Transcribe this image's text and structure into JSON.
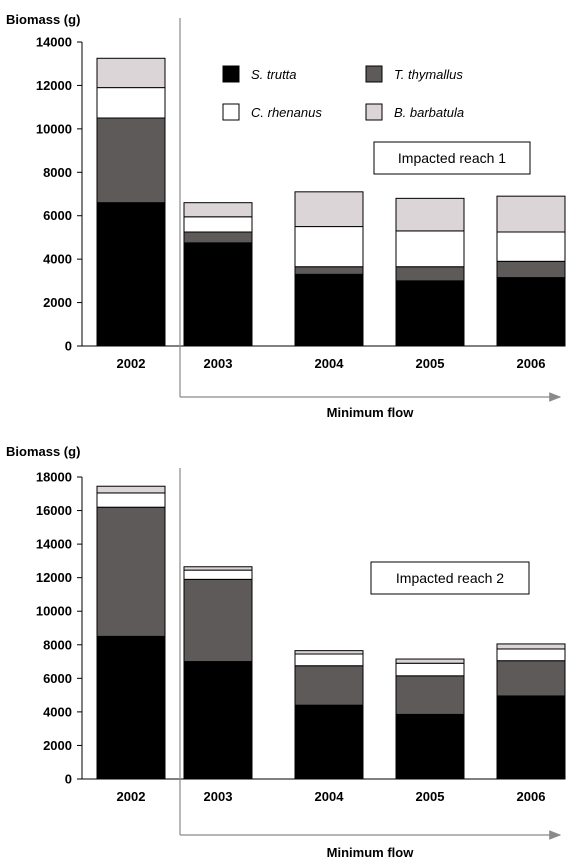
{
  "colors": {
    "S. trutta": "#000000",
    "T. thymallus": "#5f5a5a",
    "C. rhenanus": "#ffffff",
    "B. barbatula": "#dcd5d7"
  },
  "chart_data": [
    {
      "type": "bar",
      "stacked": true,
      "ylabel": "Biomass (g)",
      "annotation": "Impacted reach 1",
      "arrow_label": "Minimum flow",
      "categories": [
        "2002",
        "2003",
        "2004",
        "2005",
        "2006"
      ],
      "ylim": [
        0,
        14000
      ],
      "yticks": [
        0,
        2000,
        4000,
        6000,
        8000,
        10000,
        12000,
        14000
      ],
      "legend": [
        "S. trutta",
        "T. thymallus",
        "C. rhenanus",
        "B. barbatula"
      ],
      "series": [
        {
          "name": "S. trutta",
          "values": [
            6600,
            4750,
            3300,
            3000,
            3150
          ]
        },
        {
          "name": "T. thymallus",
          "values": [
            3900,
            500,
            350,
            650,
            750
          ]
        },
        {
          "name": "C. rhenanus",
          "values": [
            1400,
            700,
            1850,
            1650,
            1350
          ]
        },
        {
          "name": "B. barbatula",
          "values": [
            1350,
            650,
            1600,
            1500,
            1650
          ]
        }
      ]
    },
    {
      "type": "bar",
      "stacked": true,
      "ylabel": "Biomass (g)",
      "annotation": "Impacted reach 2",
      "arrow_label": "Minimum flow",
      "categories": [
        "2002",
        "2003",
        "2004",
        "2005",
        "2006"
      ],
      "ylim": [
        0,
        18000
      ],
      "yticks": [
        0,
        2000,
        4000,
        6000,
        8000,
        10000,
        12000,
        14000,
        16000,
        18000
      ],
      "series": [
        {
          "name": "S. trutta",
          "values": [
            8500,
            7000,
            4400,
            3850,
            4950
          ]
        },
        {
          "name": "T. thymallus",
          "values": [
            7700,
            4900,
            2350,
            2300,
            2100
          ]
        },
        {
          "name": "C. rhenanus",
          "values": [
            850,
            550,
            700,
            750,
            700
          ]
        },
        {
          "name": "B. barbatula",
          "values": [
            400,
            200,
            200,
            250,
            300
          ]
        }
      ]
    }
  ]
}
